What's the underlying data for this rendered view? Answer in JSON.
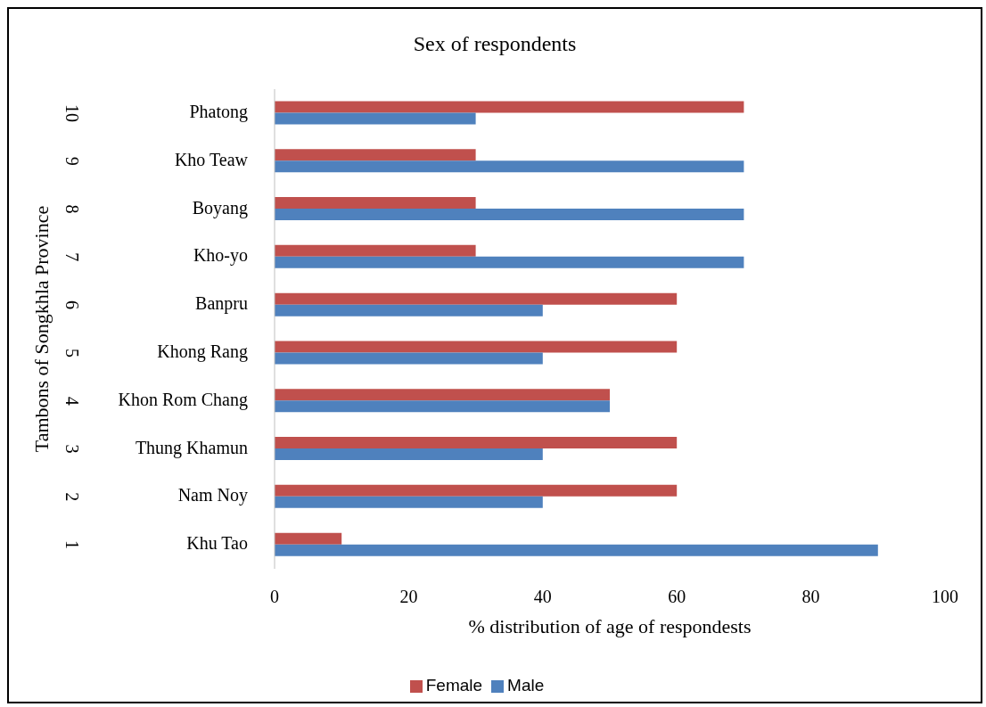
{
  "chart_data": {
    "type": "bar",
    "orientation": "horizontal",
    "title": "Sex of respondents",
    "xlabel": "% distribution of age of respondests",
    "ylabel": "Tambons of Songkhla Province",
    "categories": [
      "Phatong",
      "Kho Teaw",
      "Boyang",
      "Kho-yo",
      "Banpru",
      "Khong Rang",
      "Khon Rom Chang",
      "Thung Khamun",
      "Nam Noy",
      "Khu Tao"
    ],
    "annotations": [
      "10",
      "9",
      "8",
      "7",
      "6",
      "5",
      "4",
      "3",
      "2",
      "1"
    ],
    "series": [
      {
        "name": "Female",
        "color": "#c0504d",
        "values": [
          70,
          30,
          30,
          30,
          60,
          60,
          50,
          60,
          60,
          10
        ]
      },
      {
        "name": "Male",
        "color": "#4f81bd",
        "values": [
          30,
          70,
          70,
          70,
          40,
          40,
          50,
          40,
          40,
          90
        ]
      }
    ],
    "xlim": [
      0,
      100
    ],
    "xticks": [
      0,
      20,
      40,
      60,
      80,
      100
    ],
    "legend": "bottom"
  }
}
